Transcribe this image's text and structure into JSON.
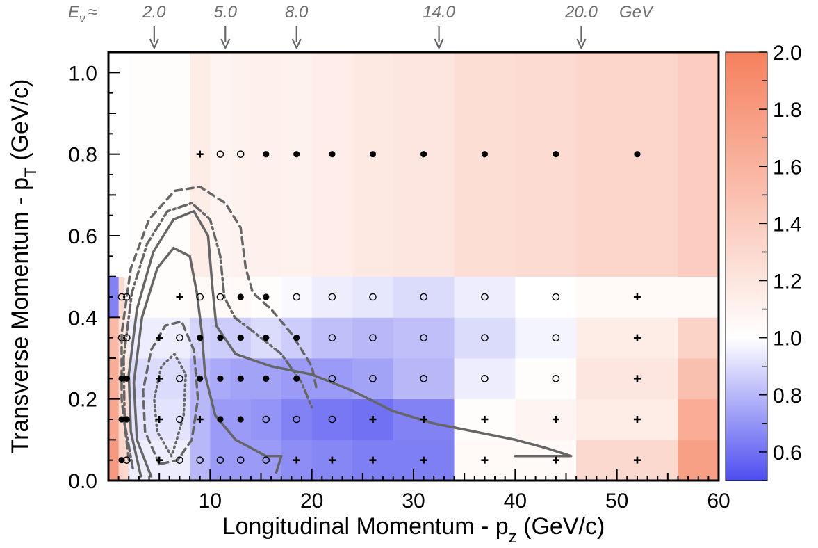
{
  "chart_data": {
    "type": "heatmap",
    "title": "",
    "xlabel": "Longitudinal Momentum - p",
    "xlabel_sub": "z",
    "xlabel_unit": " (GeV/c)",
    "ylabel": "Transverse Momentum - p",
    "ylabel_sub": "T",
    "ylabel_unit": " (GeV/c)",
    "xlim": [
      0,
      60
    ],
    "ylim": [
      0,
      1.05
    ],
    "x_ticks": [
      10,
      20,
      30,
      40,
      50,
      60
    ],
    "x_tick_labels": [
      "10",
      "20",
      "30",
      "40",
      "50",
      "60"
    ],
    "y_ticks": [
      0.0,
      0.2,
      0.4,
      0.6,
      0.8,
      1.0
    ],
    "y_tick_labels": [
      "0.0",
      "0.2",
      "0.4",
      "0.6",
      "0.8",
      "1.0"
    ],
    "colorbar": {
      "range": [
        0.5,
        2.0
      ],
      "ticks": [
        0.6,
        0.8,
        1.0,
        1.2,
        1.4,
        1.6,
        1.8,
        2.0
      ],
      "tick_labels": [
        "0.6",
        "0.8",
        "1.0",
        "1.2",
        "1.4",
        "1.6",
        "1.8",
        "2.0"
      ],
      "low_color": "#4d4df0",
      "mid_color": "#ffffff",
      "high_color": "#f5805e"
    },
    "energy_annotations": {
      "prefix": "E",
      "prefix_sub": "ν",
      "approx": "≈",
      "unit": "GeV",
      "markers": [
        {
          "label": "2.0",
          "pz": 4.5
        },
        {
          "label": "5.0",
          "pz": 11.5
        },
        {
          "label": "8.0",
          "pz": 18.5
        },
        {
          "label": "14.0",
          "pz": 32.5
        },
        {
          "label": "20.0",
          "pz": 46.5
        }
      ]
    },
    "x_edges": [
      0,
      1,
      1.5,
      2,
      8,
      10,
      12,
      14,
      17,
      20,
      24,
      28,
      34,
      40,
      46,
      56,
      60
    ],
    "y_edges": [
      0,
      0.1,
      0.2,
      0.3,
      0.4,
      0.5,
      1.05
    ],
    "cells": [
      [
        1.8,
        1.35,
        1.3,
        0.95,
        0.8,
        0.72,
        0.72,
        0.72,
        0.68,
        0.66,
        0.64,
        0.64,
        1.05,
        1.05,
        1.3,
        1.75
      ],
      [
        1.7,
        1.3,
        1.25,
        0.92,
        0.8,
        0.72,
        0.72,
        0.7,
        0.65,
        0.62,
        0.6,
        0.65,
        1.02,
        1.08,
        1.15,
        1.65
      ],
      [
        1.65,
        1.3,
        1.2,
        0.9,
        0.8,
        0.76,
        0.74,
        0.74,
        0.72,
        0.72,
        0.74,
        0.8,
        0.95,
        1.02,
        1.2,
        1.5
      ],
      [
        1.55,
        1.25,
        1.15,
        0.95,
        0.88,
        0.86,
        0.86,
        0.9,
        0.86,
        0.82,
        0.8,
        0.82,
        0.9,
        0.97,
        1.15,
        1.35
      ],
      [
        0.65,
        1.3,
        1.1,
        1.02,
        1.05,
        1.05,
        1.05,
        1.02,
        0.98,
        0.95,
        0.93,
        0.9,
        0.95,
        1.0,
        1.05,
        1.05
      ],
      [
        1.0,
        1.0,
        1.0,
        1.02,
        1.15,
        1.08,
        1.1,
        1.12,
        1.1,
        1.14,
        1.18,
        1.2,
        1.26,
        1.28,
        1.32,
        1.4
      ]
    ],
    "marker_legend": {
      "filled": "filled circle",
      "open": "open circle",
      "plus": "plus"
    },
    "markers": [
      {
        "pz": 9,
        "pt": 0.8,
        "m": "plus"
      },
      {
        "pz": 11,
        "pt": 0.8,
        "m": "open"
      },
      {
        "pz": 13,
        "pt": 0.8,
        "m": "open"
      },
      {
        "pz": 15.5,
        "pt": 0.8,
        "m": "filled"
      },
      {
        "pz": 18.5,
        "pt": 0.8,
        "m": "filled"
      },
      {
        "pz": 22,
        "pt": 0.8,
        "m": "filled"
      },
      {
        "pz": 26,
        "pt": 0.8,
        "m": "filled"
      },
      {
        "pz": 31,
        "pt": 0.8,
        "m": "filled"
      },
      {
        "pz": 37,
        "pt": 0.8,
        "m": "filled"
      },
      {
        "pz": 44,
        "pt": 0.8,
        "m": "filled"
      },
      {
        "pz": 52,
        "pt": 0.8,
        "m": "filled"
      },
      {
        "pz": 1.3,
        "pt": 0.45,
        "m": "open"
      },
      {
        "pz": 1.8,
        "pt": 0.45,
        "m": "open"
      },
      {
        "pz": 7,
        "pt": 0.45,
        "m": "plus"
      },
      {
        "pz": 9,
        "pt": 0.45,
        "m": "open"
      },
      {
        "pz": 11,
        "pt": 0.45,
        "m": "open"
      },
      {
        "pz": 13,
        "pt": 0.45,
        "m": "filled"
      },
      {
        "pz": 15.5,
        "pt": 0.45,
        "m": "filled"
      },
      {
        "pz": 18.5,
        "pt": 0.45,
        "m": "open"
      },
      {
        "pz": 22,
        "pt": 0.45,
        "m": "open"
      },
      {
        "pz": 26,
        "pt": 0.45,
        "m": "open"
      },
      {
        "pz": 31,
        "pt": 0.45,
        "m": "open"
      },
      {
        "pz": 37,
        "pt": 0.45,
        "m": "open"
      },
      {
        "pz": 44,
        "pt": 0.45,
        "m": "open"
      },
      {
        "pz": 52,
        "pt": 0.45,
        "m": "plus"
      },
      {
        "pz": 1.3,
        "pt": 0.35,
        "m": "open"
      },
      {
        "pz": 1.8,
        "pt": 0.35,
        "m": "open"
      },
      {
        "pz": 5,
        "pt": 0.35,
        "m": "plus"
      },
      {
        "pz": 7,
        "pt": 0.35,
        "m": "open"
      },
      {
        "pz": 9,
        "pt": 0.35,
        "m": "filled"
      },
      {
        "pz": 11,
        "pt": 0.35,
        "m": "filled"
      },
      {
        "pz": 13,
        "pt": 0.35,
        "m": "filled"
      },
      {
        "pz": 15.5,
        "pt": 0.35,
        "m": "filled"
      },
      {
        "pz": 18.5,
        "pt": 0.35,
        "m": "filled"
      },
      {
        "pz": 22,
        "pt": 0.35,
        "m": "open"
      },
      {
        "pz": 26,
        "pt": 0.35,
        "m": "open"
      },
      {
        "pz": 31,
        "pt": 0.35,
        "m": "open"
      },
      {
        "pz": 37,
        "pt": 0.35,
        "m": "open"
      },
      {
        "pz": 44,
        "pt": 0.35,
        "m": "open"
      },
      {
        "pz": 52,
        "pt": 0.35,
        "m": "plus"
      },
      {
        "pz": 1.3,
        "pt": 0.25,
        "m": "filled"
      },
      {
        "pz": 1.8,
        "pt": 0.25,
        "m": "filled"
      },
      {
        "pz": 5,
        "pt": 0.25,
        "m": "plus"
      },
      {
        "pz": 7,
        "pt": 0.25,
        "m": "open"
      },
      {
        "pz": 9,
        "pt": 0.25,
        "m": "filled"
      },
      {
        "pz": 11,
        "pt": 0.25,
        "m": "filled"
      },
      {
        "pz": 13,
        "pt": 0.25,
        "m": "filled"
      },
      {
        "pz": 15.5,
        "pt": 0.25,
        "m": "filled"
      },
      {
        "pz": 18.5,
        "pt": 0.25,
        "m": "filled"
      },
      {
        "pz": 22,
        "pt": 0.25,
        "m": "open"
      },
      {
        "pz": 26,
        "pt": 0.25,
        "m": "open"
      },
      {
        "pz": 31,
        "pt": 0.25,
        "m": "open"
      },
      {
        "pz": 37,
        "pt": 0.25,
        "m": "open"
      },
      {
        "pz": 44,
        "pt": 0.25,
        "m": "open"
      },
      {
        "pz": 52,
        "pt": 0.25,
        "m": "plus"
      },
      {
        "pz": 1.3,
        "pt": 0.15,
        "m": "filled"
      },
      {
        "pz": 1.8,
        "pt": 0.15,
        "m": "filled"
      },
      {
        "pz": 5,
        "pt": 0.15,
        "m": "plus"
      },
      {
        "pz": 7,
        "pt": 0.15,
        "m": "open"
      },
      {
        "pz": 9,
        "pt": 0.15,
        "m": "plus"
      },
      {
        "pz": 11,
        "pt": 0.15,
        "m": "filled"
      },
      {
        "pz": 13,
        "pt": 0.15,
        "m": "filled"
      },
      {
        "pz": 15.5,
        "pt": 0.15,
        "m": "open"
      },
      {
        "pz": 18.5,
        "pt": 0.15,
        "m": "open"
      },
      {
        "pz": 22,
        "pt": 0.15,
        "m": "open"
      },
      {
        "pz": 26,
        "pt": 0.15,
        "m": "plus"
      },
      {
        "pz": 31,
        "pt": 0.15,
        "m": "plus"
      },
      {
        "pz": 37,
        "pt": 0.15,
        "m": "plus"
      },
      {
        "pz": 44,
        "pt": 0.15,
        "m": "plus"
      },
      {
        "pz": 52,
        "pt": 0.15,
        "m": "plus"
      },
      {
        "pz": 1.3,
        "pt": 0.05,
        "m": "filled"
      },
      {
        "pz": 1.8,
        "pt": 0.05,
        "m": "open"
      },
      {
        "pz": 5,
        "pt": 0.05,
        "m": "plus"
      },
      {
        "pz": 7,
        "pt": 0.05,
        "m": "open"
      },
      {
        "pz": 9,
        "pt": 0.05,
        "m": "open"
      },
      {
        "pz": 11,
        "pt": 0.05,
        "m": "open"
      },
      {
        "pz": 13,
        "pt": 0.05,
        "m": "open"
      },
      {
        "pz": 15.5,
        "pt": 0.05,
        "m": "open"
      },
      {
        "pz": 18.5,
        "pt": 0.05,
        "m": "plus"
      },
      {
        "pz": 22,
        "pt": 0.05,
        "m": "plus"
      },
      {
        "pz": 26,
        "pt": 0.05,
        "m": "plus"
      },
      {
        "pz": 31,
        "pt": 0.05,
        "m": "plus"
      },
      {
        "pz": 37,
        "pt": 0.05,
        "m": "plus"
      },
      {
        "pz": 44,
        "pt": 0.05,
        "m": "plus"
      },
      {
        "pz": 52,
        "pt": 0.05,
        "m": "plus"
      }
    ],
    "contour_color": "#666666",
    "contours": [
      {
        "style": "dotted",
        "points": [
          [
            6.2,
            0.06
          ],
          [
            4.8,
            0.12
          ],
          [
            4.5,
            0.2
          ],
          [
            5.2,
            0.28
          ],
          [
            6.5,
            0.31
          ],
          [
            7.6,
            0.26
          ],
          [
            7.4,
            0.16
          ],
          [
            6.6,
            0.09
          ],
          [
            6.2,
            0.06
          ]
        ]
      },
      {
        "style": "dashed",
        "points": [
          [
            5.0,
            0.04
          ],
          [
            3.6,
            0.12
          ],
          [
            3.4,
            0.22
          ],
          [
            4.2,
            0.32
          ],
          [
            5.6,
            0.38
          ],
          [
            7.2,
            0.39
          ],
          [
            8.4,
            0.32
          ],
          [
            8.8,
            0.2
          ],
          [
            8.2,
            0.1
          ],
          [
            6.8,
            0.05
          ],
          [
            5.0,
            0.04
          ]
        ]
      },
      {
        "style": "solid",
        "points": [
          [
            4.2,
            0.01
          ],
          [
            2.8,
            0.1
          ],
          [
            2.5,
            0.24
          ],
          [
            3.3,
            0.4
          ],
          [
            4.8,
            0.52
          ],
          [
            6.4,
            0.57
          ],
          [
            8.0,
            0.55
          ],
          [
            8.7,
            0.46
          ],
          [
            9.2,
            0.36
          ],
          [
            9.5,
            0.26
          ],
          [
            10.5,
            0.16
          ],
          [
            12.5,
            0.1
          ],
          [
            15.5,
            0.06
          ],
          [
            17.0,
            0.06
          ],
          [
            16.5,
            0.02
          ]
        ]
      },
      {
        "style": "solid",
        "points": [
          [
            3.2,
            0.01
          ],
          [
            2.2,
            0.12
          ],
          [
            2.0,
            0.26
          ],
          [
            2.8,
            0.42
          ],
          [
            4.4,
            0.56
          ],
          [
            6.4,
            0.64
          ],
          [
            8.4,
            0.66
          ],
          [
            9.8,
            0.6
          ],
          [
            10.2,
            0.48
          ],
          [
            10.6,
            0.38
          ],
          [
            12.5,
            0.31
          ],
          [
            16.0,
            0.28
          ],
          [
            20.0,
            0.26
          ],
          [
            24.0,
            0.22
          ],
          [
            28.0,
            0.17
          ],
          [
            32.0,
            0.14
          ],
          [
            36.0,
            0.12
          ],
          [
            40.0,
            0.1
          ],
          [
            43.0,
            0.08
          ],
          [
            45.5,
            0.06
          ],
          [
            43.0,
            0.06
          ],
          [
            40.0,
            0.06
          ]
        ]
      },
      {
        "style": "dashdot",
        "points": [
          [
            2.4,
            0.03
          ],
          [
            1.6,
            0.14
          ],
          [
            1.5,
            0.3
          ],
          [
            2.3,
            0.46
          ],
          [
            3.8,
            0.58
          ],
          [
            5.8,
            0.66
          ],
          [
            8.2,
            0.68
          ],
          [
            10.0,
            0.64
          ],
          [
            11.0,
            0.55
          ],
          [
            11.4,
            0.45
          ],
          [
            12.4,
            0.4
          ],
          [
            14.5,
            0.36
          ],
          [
            17.0,
            0.31
          ],
          [
            19.0,
            0.24
          ],
          [
            20.0,
            0.18
          ]
        ]
      },
      {
        "style": "dashed",
        "points": [
          [
            2.0,
            0.05
          ],
          [
            1.3,
            0.2
          ],
          [
            1.3,
            0.36
          ],
          [
            2.2,
            0.52
          ],
          [
            4.0,
            0.64
          ],
          [
            6.5,
            0.71
          ],
          [
            9.0,
            0.72
          ],
          [
            11.5,
            0.68
          ],
          [
            13.0,
            0.62
          ],
          [
            13.5,
            0.52
          ],
          [
            14.2,
            0.46
          ],
          [
            16.0,
            0.42
          ],
          [
            18.0,
            0.36
          ],
          [
            20.0,
            0.28
          ],
          [
            20.5,
            0.22
          ]
        ]
      }
    ]
  }
}
